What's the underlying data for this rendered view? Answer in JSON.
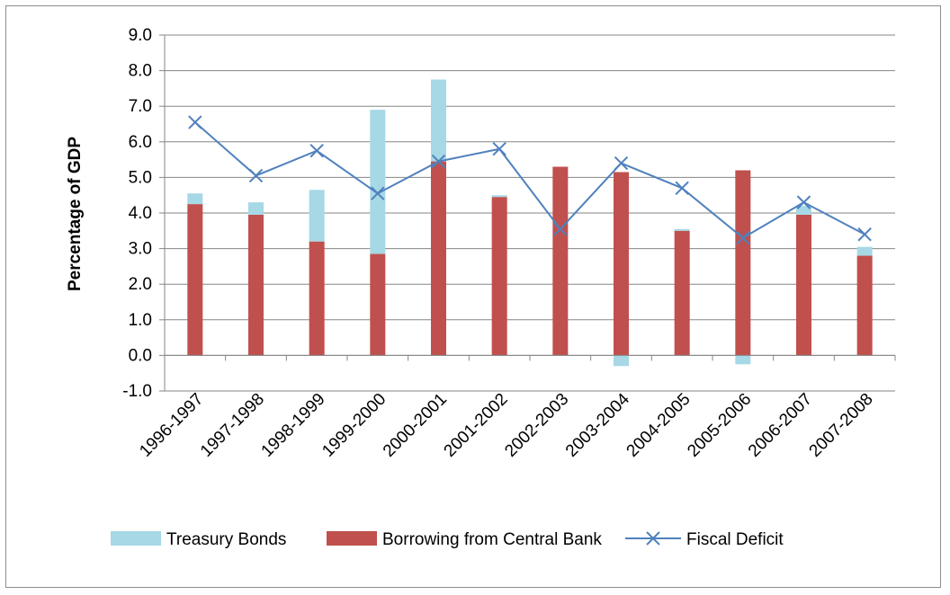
{
  "chart_data": {
    "type": "bar",
    "stacked": true,
    "title": "",
    "xlabel": "",
    "ylabel": "Percentage of GDP",
    "ylim": [
      -1.0,
      9.0
    ],
    "ytick_step": 1.0,
    "grid": true,
    "legend_position": "bottom",
    "categories": [
      "1996-1997",
      "1997-1998",
      "1998-1999",
      "1999-2000",
      "2000-2001",
      "2001-2002",
      "2002-2003",
      "2003-2004",
      "2004-2005",
      "2005-2006",
      "2006-2007",
      "2007-2008"
    ],
    "series": [
      {
        "name": "Borrowing from Central Bank",
        "kind": "bar",
        "color": "#c0504d",
        "values": [
          4.25,
          3.95,
          3.2,
          2.85,
          5.45,
          4.45,
          5.3,
          5.15,
          3.5,
          5.2,
          3.95,
          2.8
        ]
      },
      {
        "name": "Treasury Bonds",
        "kind": "bar",
        "color": "#a6d8e6",
        "values": [
          0.3,
          0.35,
          1.45,
          4.05,
          2.3,
          0.05,
          0.0,
          -0.3,
          0.05,
          -0.25,
          0.25,
          0.25
        ]
      },
      {
        "name": "Fiscal Deficit",
        "kind": "line",
        "marker": "x",
        "color": "#4f81bd",
        "values": [
          6.55,
          5.05,
          5.75,
          4.55,
          5.45,
          5.8,
          3.55,
          5.4,
          4.7,
          3.3,
          4.3,
          3.4
        ]
      }
    ]
  }
}
